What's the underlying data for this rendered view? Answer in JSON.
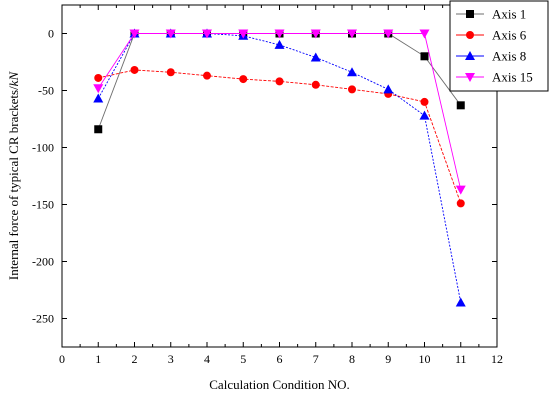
{
  "chart_data": {
    "type": "line",
    "xlabel": "Calculation Condition NO.",
    "ylabel_prefix": "Internal force of typical CR brackets/",
    "ylabel_unit": "kN",
    "xlim": [
      0,
      12
    ],
    "ylim": [
      -275,
      25
    ],
    "x_ticks": [
      0,
      1,
      2,
      3,
      4,
      5,
      6,
      7,
      8,
      9,
      10,
      11,
      12
    ],
    "y_ticks": [
      0,
      -50,
      -100,
      -150,
      -200,
      -250
    ],
    "grid": false,
    "legend_position": "top-right",
    "x": [
      1,
      2,
      3,
      4,
      5,
      6,
      7,
      8,
      9,
      10,
      11
    ],
    "series": [
      {
        "name": "Axis 1",
        "marker": "square",
        "color": "#000000",
        "line_color": "#6e6e6e",
        "values": [
          -84,
          0,
          0,
          0,
          0,
          0,
          0,
          0,
          0,
          -20,
          -63
        ]
      },
      {
        "name": "Axis 6",
        "marker": "circle",
        "color": "#ff0000",
        "line_color": "#ff0000",
        "values": [
          -39,
          -32,
          -34,
          -37,
          -40,
          -42,
          -45,
          -49,
          -53,
          -60,
          -149
        ]
      },
      {
        "name": "Axis 8",
        "marker": "triangle-up",
        "color": "#0000ff",
        "line_color": "#0000ff",
        "values": [
          -57,
          0,
          0,
          0,
          -2,
          -10,
          -21,
          -34,
          -49,
          -72,
          -236
        ]
      },
      {
        "name": "Axis 15",
        "marker": "triangle-down",
        "color": "#ff00ff",
        "line_color": "#ff00ff",
        "values": [
          -48,
          0,
          0,
          0,
          0,
          0,
          0,
          0,
          0,
          0,
          -137
        ]
      }
    ]
  }
}
